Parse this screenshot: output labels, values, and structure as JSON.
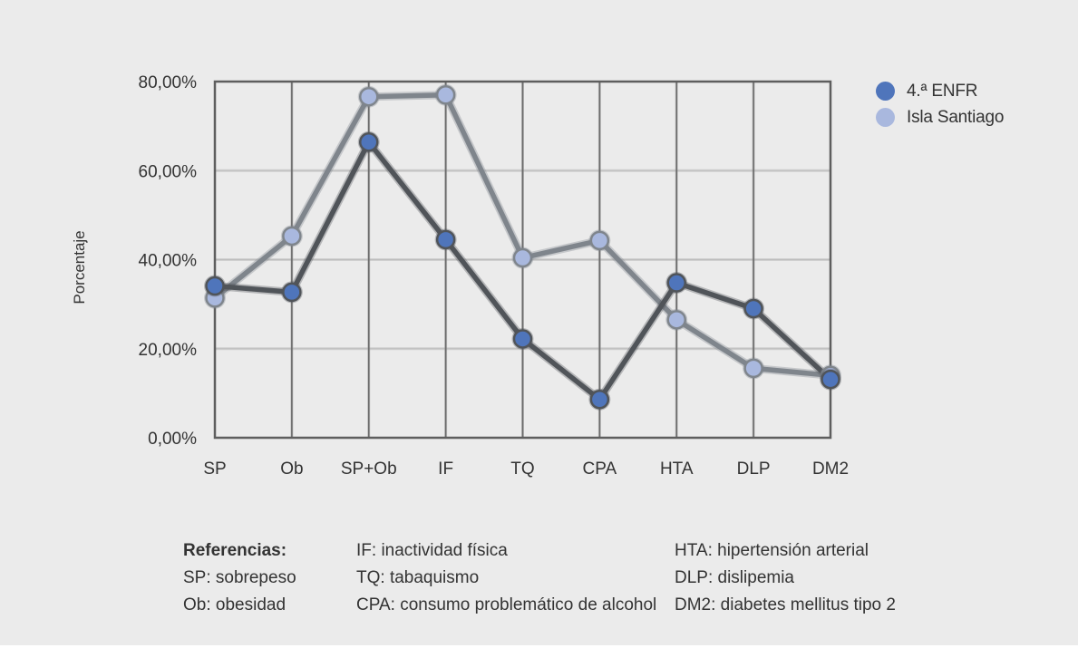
{
  "colors": {
    "background": "#ebebeb",
    "series_dark_marker": "#4f75bb",
    "series_dark_line": "#505459",
    "series_light_marker": "#a9b8de",
    "series_light_line": "#7f858c",
    "grid": "#6b6b6b"
  },
  "chart_data": {
    "type": "line",
    "title": "",
    "xlabel": "",
    "ylabel": "Porcentaje",
    "categories": [
      "SP",
      "Ob",
      "SP+Ob",
      "IF",
      "TQ",
      "CPA",
      "HTA",
      "DLP",
      "DM2"
    ],
    "ylim": [
      0,
      80
    ],
    "yticks": [
      0,
      20,
      40,
      60,
      80
    ],
    "ytick_labels": [
      "0,00%",
      "20,00%",
      "40,00%",
      "60,00%",
      "80,00%"
    ],
    "grid": true,
    "legend_position": "top-right",
    "series": [
      {
        "name": "4.ª ENFR",
        "values": [
          34.1,
          32.7,
          66.4,
          44.5,
          22.2,
          8.6,
          34.8,
          29.0,
          13.1
        ]
      },
      {
        "name": "Isla Santiago",
        "values": [
          31.4,
          45.3,
          76.6,
          77.0,
          40.4,
          44.3,
          26.5,
          15.6,
          14.0
        ]
      }
    ]
  },
  "legend": [
    {
      "label": "4.ª ENFR"
    },
    {
      "label": "Isla Santiago"
    }
  ],
  "references": {
    "title": "Referencias:",
    "col1": [
      "SP: sobrepeso",
      "Ob: obesidad"
    ],
    "col2": [
      "IF: inactividad física",
      "TQ: tabaquismo",
      "CPA: consumo problemático de alcohol"
    ],
    "col3": [
      "HTA: hipertensión arterial",
      "DLP: dislipemia",
      "DM2: diabetes mellitus tipo 2"
    ]
  }
}
